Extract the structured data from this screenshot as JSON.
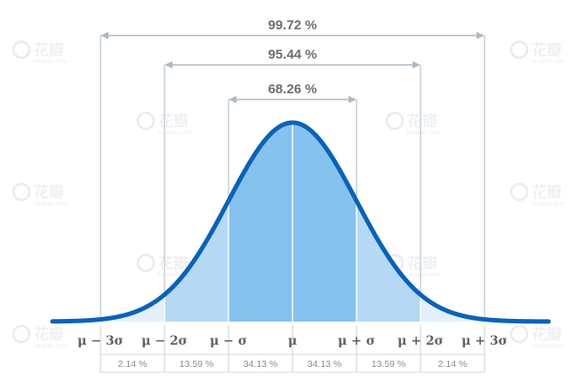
{
  "chart_data": {
    "type": "area",
    "title": "",
    "xlabel": "",
    "ylabel": "",
    "xlim": [
      -3.75,
      4.0
    ],
    "curve_color": "#0a62b8",
    "tick_labels": [
      "μ − 3σ",
      "μ − 2σ",
      "μ − σ",
      "μ",
      "μ + σ",
      "μ + 2σ",
      "μ + 3σ"
    ],
    "tick_positions": [
      -3,
      -2,
      -1,
      0,
      1,
      2,
      3
    ],
    "bands": [
      {
        "from": -3,
        "to": -2,
        "percent": "2.14 %",
        "color": "#e3f0fb"
      },
      {
        "from": -2,
        "to": -1,
        "percent": "13.59 %",
        "color": "#b5d9f5"
      },
      {
        "from": -1,
        "to": 0,
        "percent": "34.13 %",
        "color": "#86c2ee"
      },
      {
        "from": 0,
        "to": 1,
        "percent": "34.13 %",
        "color": "#86c2ee"
      },
      {
        "from": 1,
        "to": 2,
        "percent": "13.59 %",
        "color": "#b5d9f5"
      },
      {
        "from": 2,
        "to": 3,
        "percent": "2.14 %",
        "color": "#e3f0fb"
      }
    ],
    "ranges": [
      {
        "sigma": 1,
        "label": "68.26 %"
      },
      {
        "sigma": 2,
        "label": "95.44 %"
      },
      {
        "sigma": 3,
        "label": "99.72 %"
      }
    ]
  },
  "watermark": {
    "text": "花瓣",
    "subtext": "huaban.com"
  }
}
